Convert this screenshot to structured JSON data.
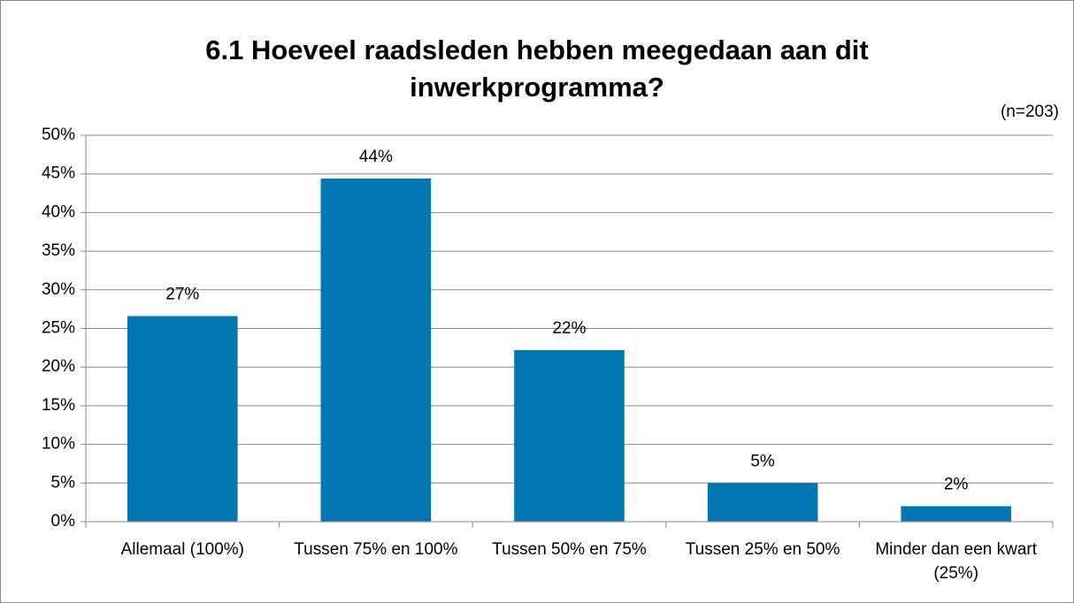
{
  "chart_data": {
    "type": "bar",
    "title": "6.1 Hoeveel raadsleden hebben meegedaan aan dit inwerkprogramma?",
    "subtitle": "(n=203)",
    "categories": [
      "Allemaal (100%)",
      "Tussen 75% en 100%",
      "Tussen 50% en 75%",
      "Tussen 25% en 50%",
      "Minder dan een kwart (25%)"
    ],
    "values": [
      26.6,
      44.4,
      22.2,
      5,
      2
    ],
    "value_labels": [
      "27%",
      "44%",
      "22%",
      "5%",
      "2%"
    ],
    "color": "#0077b0",
    "ylim": [
      0,
      50
    ],
    "yticks": [
      {
        "value": 0,
        "label": "0%"
      },
      {
        "value": 5,
        "label": "5%"
      },
      {
        "value": 10,
        "label": "10%"
      },
      {
        "value": 15,
        "label": "15%"
      },
      {
        "value": 20,
        "label": "20%"
      },
      {
        "value": 25,
        "label": "25%"
      },
      {
        "value": 30,
        "label": "30%"
      },
      {
        "value": 35,
        "label": "35%"
      },
      {
        "value": 40,
        "label": "40%"
      },
      {
        "value": 45,
        "label": "45%"
      },
      {
        "value": 50,
        "label": "50%"
      }
    ],
    "grid": true
  }
}
